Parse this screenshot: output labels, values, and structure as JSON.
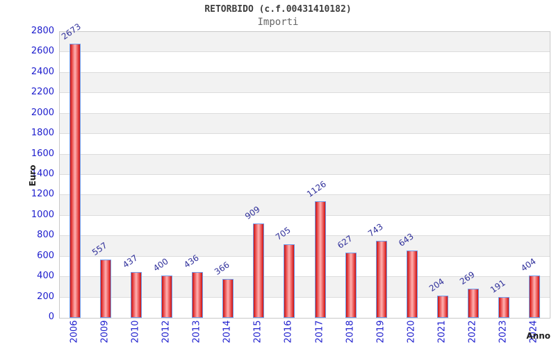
{
  "header": {
    "title": "RETORBIDO (c.f.00431410182)",
    "subtitle": "Importi"
  },
  "chart_data": {
    "type": "bar",
    "title": "RETORBIDO (c.f.00431410182)",
    "subtitle": "Importi",
    "xlabel": "Anno",
    "ylabel": "Euro",
    "categories": [
      "2006",
      "2009",
      "2010",
      "2012",
      "2013",
      "2014",
      "2015",
      "2016",
      "2017",
      "2018",
      "2019",
      "2020",
      "2021",
      "2022",
      "2023",
      "2024"
    ],
    "values": [
      2673,
      557,
      437,
      400,
      436,
      366,
      909,
      705,
      1126,
      627,
      743,
      643,
      204,
      269,
      191,
      404
    ],
    "ylim": [
      0,
      2800
    ],
    "ytick_step": 200,
    "grid": "horizontal bands every 200, alternating gray/white stripes",
    "legend_position": "none"
  },
  "colors": {
    "bar_fill_dark": "#c61212",
    "bar_fill_highlight": "#ffb2b2",
    "bar_border": "#6f9bea",
    "tick_label_blue": "#1c1ccd",
    "value_label_navy": "#31319b",
    "stripe_gray": "#f2f2f2",
    "gridline_gray": "#dcdcdc",
    "plot_border_gray": "#c9c9c9",
    "title_gray": "#3d3d3d",
    "subtitle_gray": "#666666",
    "axis_title_dark": "#222222"
  }
}
